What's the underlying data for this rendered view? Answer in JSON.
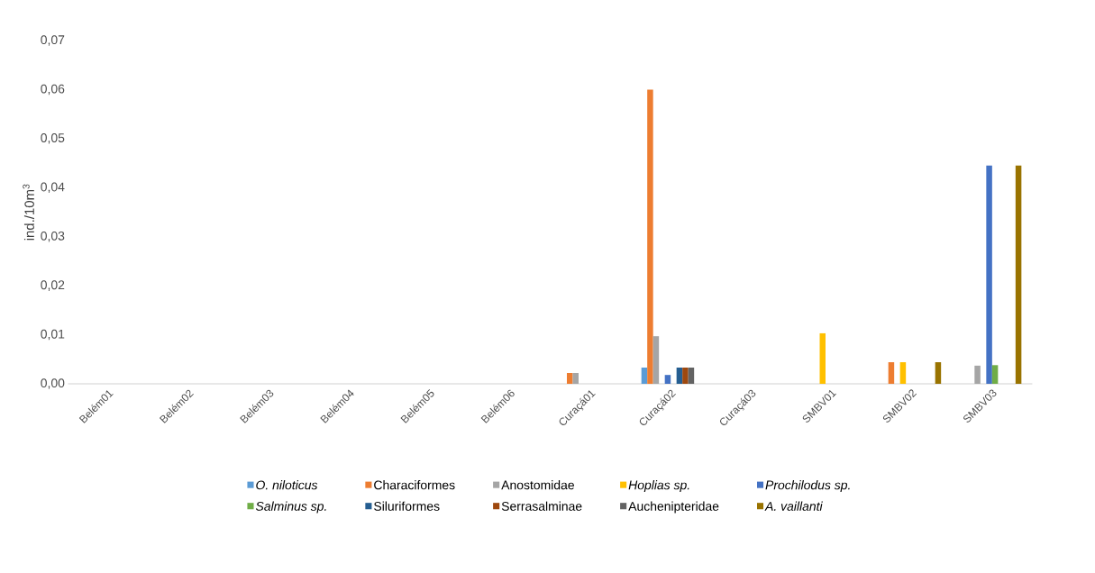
{
  "chart_data": {
    "type": "bar",
    "ylabel": "ind./10m$^{3}$",
    "categories": [
      "Belém01",
      "Belém02",
      "Belém03",
      "Belém04",
      "Belém05",
      "Belém06",
      "Curaçá01",
      "Curaçá02",
      "Curaçá03",
      "SMBV01",
      "SMBV02",
      "SMBV03"
    ],
    "series": [
      {
        "name": "*O. niloticus*",
        "color": "#5b9bd5",
        "values": [
          0,
          0,
          0,
          0,
          0,
          0,
          0,
          0.0033,
          0,
          0,
          0,
          0
        ]
      },
      {
        "name": "Characiformes",
        "color": "#ed7d31",
        "values": [
          0,
          0,
          0,
          0,
          0,
          0,
          0.0022,
          0.06,
          0,
          0,
          0.0044,
          0
        ]
      },
      {
        "name": "Anostomidae",
        "color": "#a5a5a5",
        "values": [
          0,
          0,
          0,
          0,
          0,
          0,
          0.0022,
          0.0097,
          0,
          0,
          0,
          0.0037
        ]
      },
      {
        "name": "*Hoplias sp.*",
        "color": "#ffc000",
        "values": [
          0,
          0,
          0,
          0,
          0,
          0,
          0,
          0,
          0,
          0.0103,
          0.0044,
          0
        ]
      },
      {
        "name": "*Prochilodus sp.*",
        "color": "#4472c4",
        "values": [
          0,
          0,
          0,
          0,
          0,
          0,
          0,
          0.0018,
          0,
          0,
          0,
          0.0445
        ]
      },
      {
        "name": "*Salminus sp.*",
        "color": "#70ad47",
        "values": [
          0,
          0,
          0,
          0,
          0,
          0,
          0,
          0,
          0,
          0,
          0,
          0.0038
        ]
      },
      {
        "name": "Siluriformes",
        "color": "#255e91",
        "values": [
          0,
          0,
          0,
          0,
          0,
          0,
          0,
          0.0033,
          0,
          0,
          0,
          0
        ]
      },
      {
        "name": "Serrasalminae",
        "color": "#9e480e",
        "values": [
          0,
          0,
          0,
          0,
          0,
          0,
          0,
          0.0033,
          0,
          0,
          0,
          0
        ]
      },
      {
        "name": "Auchenipteridae",
        "color": "#636363",
        "values": [
          0,
          0,
          0,
          0,
          0,
          0,
          0,
          0.0033,
          0,
          0,
          0,
          0
        ]
      },
      {
        "name": "*A. vaillanti*",
        "color": "#997300",
        "values": [
          0,
          0,
          0,
          0,
          0,
          0,
          0,
          0,
          0,
          0,
          0.0044,
          0.0445
        ]
      }
    ],
    "ylim": [
      0,
      0.07
    ],
    "yticks": [
      {
        "value": 0,
        "label": "0,00"
      },
      {
        "value": 0.01,
        "label": "0,01"
      },
      {
        "value": 0.02,
        "label": "0,02"
      },
      {
        "value": 0.03,
        "label": "0,03"
      },
      {
        "value": 0.04,
        "label": "0,04"
      },
      {
        "value": 0.05,
        "label": "0,05"
      },
      {
        "value": 0.06,
        "label": "0,06"
      },
      {
        "value": 0.07,
        "label": "0,07"
      }
    ],
    "legend": "bottom"
  }
}
